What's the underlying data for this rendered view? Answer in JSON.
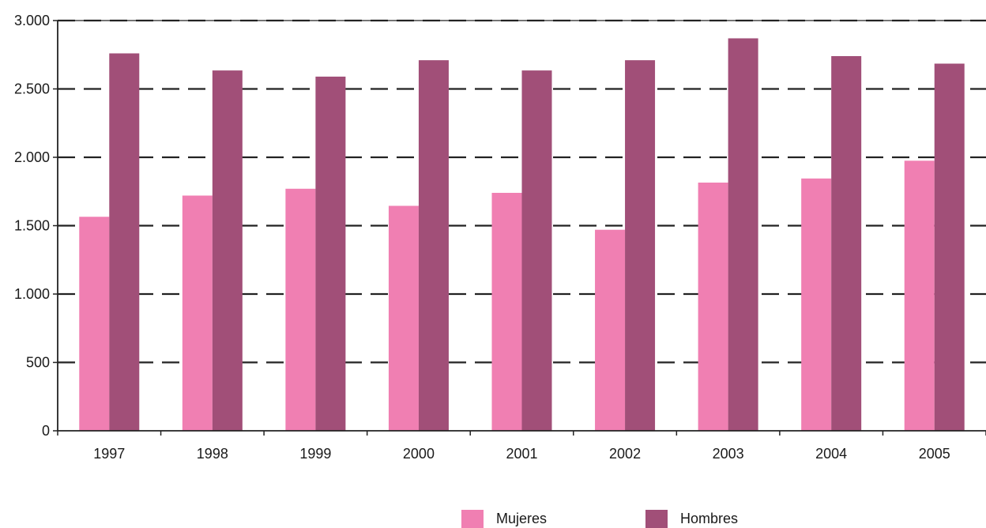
{
  "chart_data": {
    "type": "bar",
    "categories": [
      "1997",
      "1998",
      "1999",
      "2000",
      "2001",
      "2002",
      "2003",
      "2004",
      "2005"
    ],
    "series": [
      {
        "name": "Mujeres",
        "color": "#f07fb2",
        "values": [
          1565,
          1720,
          1770,
          1645,
          1740,
          1470,
          1815,
          1845,
          1975
        ]
      },
      {
        "name": "Hombres",
        "color": "#a14f78",
        "values": [
          2760,
          2635,
          2590,
          2710,
          2635,
          2710,
          2870,
          2740,
          2685
        ]
      }
    ],
    "ylim": [
      0,
      3000
    ],
    "yticks": [
      0,
      500,
      1000,
      1500,
      2000,
      2500,
      3000
    ],
    "ytick_labels": [
      "0",
      "500",
      "1.000",
      "1.500",
      "2.000",
      "2.500",
      "3.000"
    ],
    "grid": "dashed horizontal",
    "legend_position": "bottom"
  }
}
